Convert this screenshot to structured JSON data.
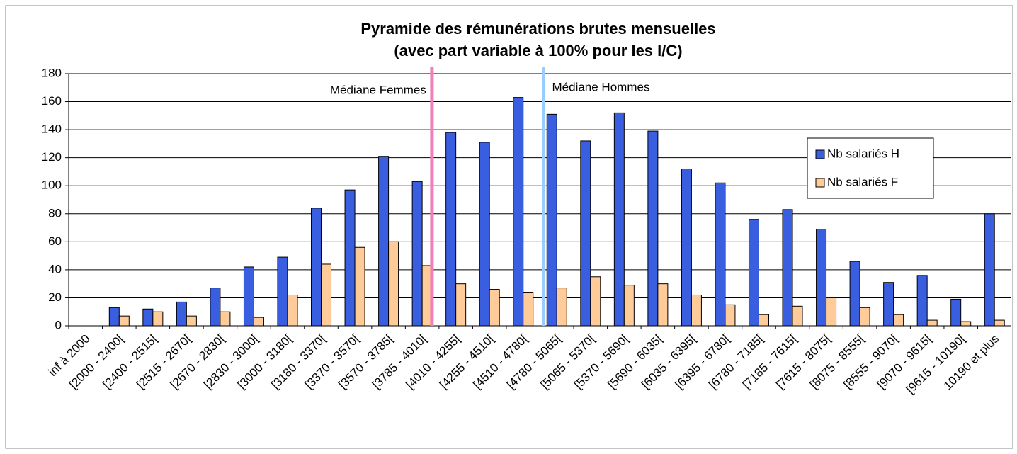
{
  "chart_data": {
    "type": "bar",
    "title": "Pyramide des rémunérations brutes mensuelles",
    "subtitle": "(avec part variable à 100% pour les I/C)",
    "categories": [
      "inf à 2000",
      "[2000 - 2400[",
      "[2400 - 2515[",
      "[2515 - 2670[",
      "[2670 - 2830[",
      "[2830 - 3000[",
      "[3000 - 3180[",
      "[3180 - 3370[",
      "[3370 - 3570[",
      "[3570 - 3785[",
      "[3785 - 4010[",
      "[4010 - 4255[",
      "[4255 - 4510[",
      "[4510 - 4780[",
      "[4780 - 5065[",
      "[5065 - 5370[",
      "[5370 - 5690[",
      "[5690 - 6035[",
      "[6035 - 6395[",
      "[6395 - 6780[",
      "[6780 - 7185[",
      "[7185 - 7615[",
      "[7615 - 8075[",
      "[8075 - 8555[",
      "[8555 - 9070[",
      "[9070 - 9615[",
      "[9615 - 10190[",
      "10190 et plus"
    ],
    "series": [
      {
        "name": "Nb salariés H",
        "color": "#3a5ee0",
        "values": [
          0,
          13,
          12,
          17,
          27,
          42,
          49,
          84,
          97,
          121,
          103,
          138,
          131,
          163,
          151,
          132,
          152,
          139,
          112,
          102,
          76,
          83,
          69,
          46,
          31,
          36,
          19,
          80
        ]
      },
      {
        "name": "Nb salariés F",
        "color": "#ffcc99",
        "values": [
          0,
          7,
          10,
          7,
          10,
          6,
          22,
          44,
          56,
          60,
          43,
          30,
          26,
          24,
          27,
          35,
          29,
          30,
          22,
          15,
          8,
          14,
          20,
          13,
          8,
          4,
          3,
          4
        ]
      }
    ],
    "annotations": [
      {
        "text": "Médiane Femmes",
        "color": "#f080b8"
      },
      {
        "text": "Médiane Hommes",
        "color": "#99ccff"
      }
    ],
    "ylim": [
      0,
      180
    ],
    "yticks": [
      0,
      20,
      40,
      60,
      80,
      100,
      120,
      140,
      160,
      180
    ],
    "grid": true,
    "legend": "right"
  }
}
